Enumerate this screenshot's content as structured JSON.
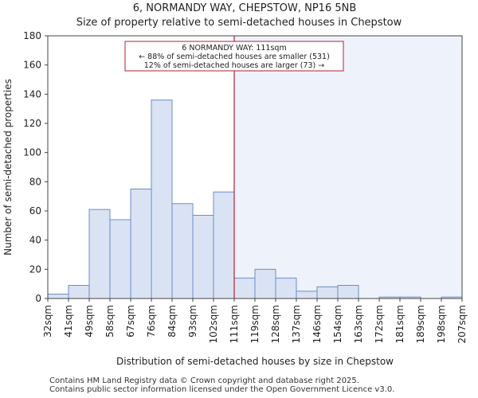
{
  "chart_data": {
    "type": "bar",
    "title": "6, NORMANDY WAY, CHEPSTOW, NP16 5NB",
    "subtitle": "Size of property relative to semi-detached houses in Chepstow",
    "xlabel": "Distribution of semi-detached houses by size in Chepstow",
    "ylabel": "Number of semi-detached properties",
    "tick_labels": [
      "32sqm",
      "41sqm",
      "49sqm",
      "58sqm",
      "67sqm",
      "76sqm",
      "84sqm",
      "93sqm",
      "102sqm",
      "111sqm",
      "119sqm",
      "128sqm",
      "137sqm",
      "146sqm",
      "154sqm",
      "163sqm",
      "172sqm",
      "181sqm",
      "189sqm",
      "198sqm",
      "207sqm"
    ],
    "bin_edges": [
      32,
      41,
      49,
      58,
      67,
      76,
      84,
      93,
      102,
      111,
      119,
      128,
      137,
      146,
      154,
      163,
      172,
      181,
      189,
      198,
      207
    ],
    "values": [
      3,
      9,
      61,
      54,
      75,
      136,
      65,
      57,
      73,
      14,
      20,
      14,
      5,
      8,
      9,
      0,
      1,
      1,
      0,
      1
    ],
    "ylim": [
      0,
      180
    ],
    "yticks": [
      0,
      20,
      40,
      60,
      80,
      100,
      120,
      140,
      160,
      180
    ],
    "marker_bin_index": 9,
    "bar_color": "#dae3f3",
    "bar_edge_color": "#6a8ec8",
    "marker_color": "#b22234",
    "shade_color": "#eef2fb",
    "annotation": {
      "line1": "6 NORMANDY WAY: 111sqm",
      "line2": "← 88% of semi-detached houses are smaller (531)",
      "line3": "12% of semi-detached houses are larger (73) →"
    }
  },
  "footer": {
    "line1": "Contains HM Land Registry data © Crown copyright and database right 2025.",
    "line2": "Contains public sector information licensed under the Open Government Licence v3.0."
  }
}
